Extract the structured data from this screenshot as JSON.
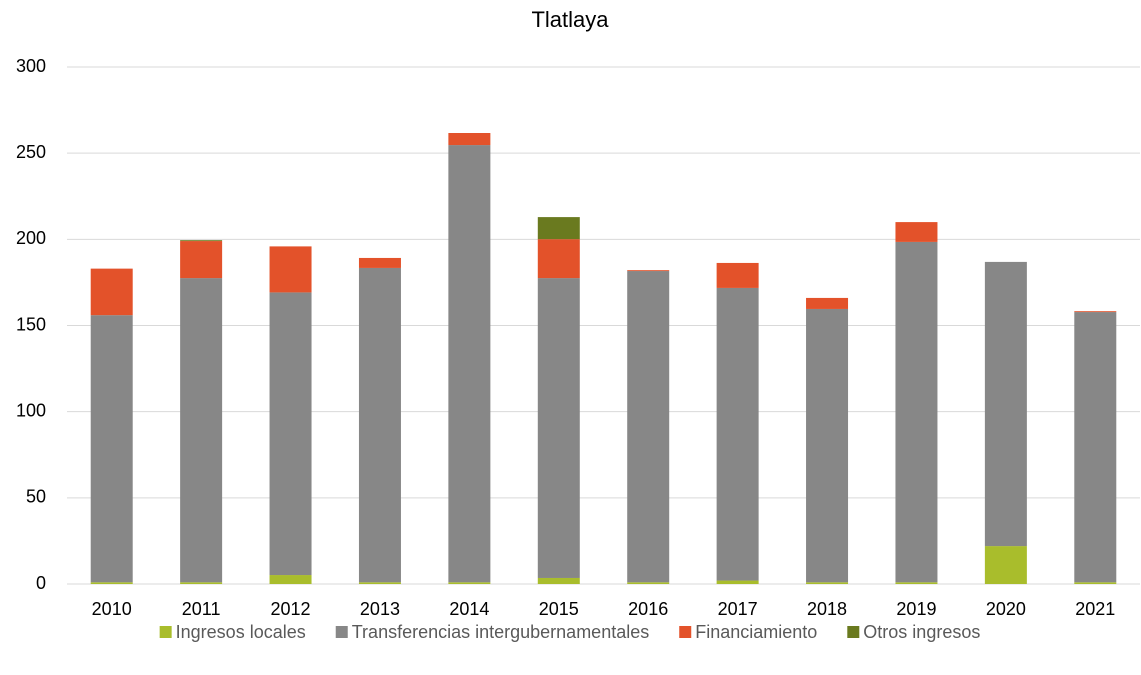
{
  "chart_data": {
    "type": "stacked_bar",
    "title": "Tlatlaya",
    "categories": [
      "2010",
      "2011",
      "2012",
      "2013",
      "2014",
      "2015",
      "2016",
      "2017",
      "2018",
      "2019",
      "2020",
      "2021"
    ],
    "series": [
      {
        "name": "Ingresos locales",
        "color": "#a9bd2c",
        "values": [
          1,
          1,
          5.2,
          1,
          1,
          3.5,
          1,
          2,
          1,
          1,
          22,
          1
        ]
      },
      {
        "name": "Transferencias intergubernamentales",
        "color": "#878787",
        "values": [
          155,
          176.5,
          164,
          182.4,
          253.7,
          174,
          180.6,
          169.8,
          158.6,
          197.5,
          164.9,
          156.8
        ]
      },
      {
        "name": "Financiamiento",
        "color": "#e3522a",
        "values": [
          27,
          21.5,
          26.7,
          5.8,
          7,
          22.6,
          0.5,
          14.5,
          6.4,
          11.5,
          0,
          0.5
        ]
      },
      {
        "name": "Otros ingresos",
        "color": "#6a7a1f",
        "values": [
          0,
          0.5,
          0,
          0,
          0,
          12.8,
          0,
          0,
          0,
          0,
          0,
          0
        ]
      }
    ],
    "ylim": [
      0,
      300
    ],
    "yticks": [
      0,
      50,
      100,
      150,
      200,
      250,
      300
    ],
    "grid": true,
    "legend": "bottom"
  }
}
